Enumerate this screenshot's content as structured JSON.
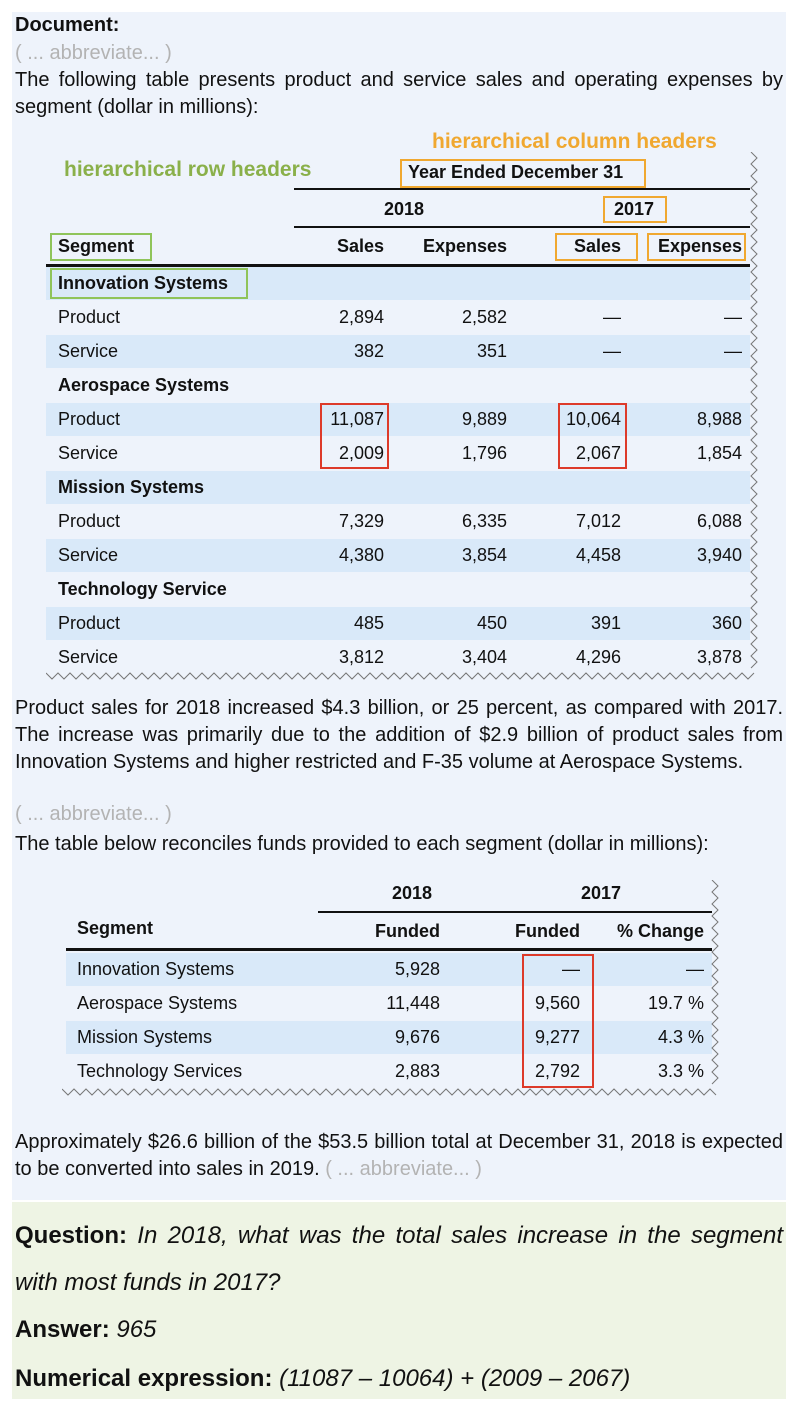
{
  "document": {
    "label": "Document:",
    "abbreviate": "( ... abbreviate... )",
    "intro": "The following table presents product and service sales and operating expenses by segment (dollar in millions):",
    "annotation_col": "hierarchical column headers",
    "annotation_row": "hierarchical row headers",
    "table1": {
      "group_header": "Year Ended December 31",
      "years": [
        "2018",
        "2017"
      ],
      "col_segment": "Segment",
      "cols": [
        "Sales",
        "Expenses",
        "Sales",
        "Expenses"
      ],
      "sections": [
        {
          "title": "Innovation Systems",
          "rows": [
            {
              "label": "Product",
              "v": [
                "2,894",
                "2,582",
                "—",
                "—"
              ]
            },
            {
              "label": "Service",
              "v": [
                "382",
                "351",
                "—",
                "—"
              ]
            }
          ]
        },
        {
          "title": "Aerospace Systems",
          "rows": [
            {
              "label": "Product",
              "v": [
                "11,087",
                "9,889",
                "10,064",
                "8,988"
              ]
            },
            {
              "label": "Service",
              "v": [
                "2,009",
                "1,796",
                "2,067",
                "1,854"
              ]
            }
          ]
        },
        {
          "title": "Mission Systems",
          "rows": [
            {
              "label": "Product",
              "v": [
                "7,329",
                "6,335",
                "7,012",
                "6,088"
              ]
            },
            {
              "label": "Service",
              "v": [
                "4,380",
                "3,854",
                "4,458",
                "3,940"
              ]
            }
          ]
        },
        {
          "title": "Technology Service",
          "rows": [
            {
              "label": "Product",
              "v": [
                "485",
                "450",
                "391",
                "360"
              ]
            },
            {
              "label": "Service",
              "v": [
                "3,812",
                "3,404",
                "4,296",
                "3,878"
              ]
            }
          ]
        }
      ]
    },
    "para2": "Product sales for 2018 increased $4.3 billion, or 25 percent, as compared with 2017. The increase was primarily due to the addition of $2.9 billion of product sales from Innovation Systems and higher restricted and F-35 volume at Aerospace Systems.",
    "intro2": "The table below reconciles funds provided to each segment (dollar in millions):",
    "table2": {
      "years": [
        "2018",
        "2017"
      ],
      "col_segment": "Segment",
      "cols": [
        "Funded",
        "Funded",
        "% Change"
      ],
      "rows": [
        {
          "label": "Innovation Systems",
          "v": [
            "5,928",
            "—",
            "—"
          ]
        },
        {
          "label": "Aerospace Systems",
          "v": [
            "11,448",
            "9,560",
            "19.7 %"
          ]
        },
        {
          "label": "Mission Systems",
          "v": [
            "9,676",
            "9,277",
            "4.3 %"
          ]
        },
        {
          "label": "Technology Services",
          "v": [
            "2,883",
            "2,792",
            "3.3 %"
          ]
        }
      ]
    },
    "para3": "Approximately $26.6 billion of the $53.5 billion total at December 31, 2018 is expected to be converted into sales in 2019."
  },
  "qa": {
    "question_label": "Question:",
    "question": "In 2018, what was the total sales increase in the segment with most funds in 2017?",
    "answer_label": "Answer:",
    "answer": "965",
    "expr_label": "Numerical expression:",
    "expr": "(11087 – 10064) + (2009 – 2067)"
  },
  "colors": {
    "doc_bg": "#eef3fb",
    "qa_bg": "#eef4e4",
    "row_band": "#d9e9f9",
    "annot_green": "#8ab04a",
    "annot_orange": "#f0a830",
    "highlight_red": "#dd3a2a"
  }
}
